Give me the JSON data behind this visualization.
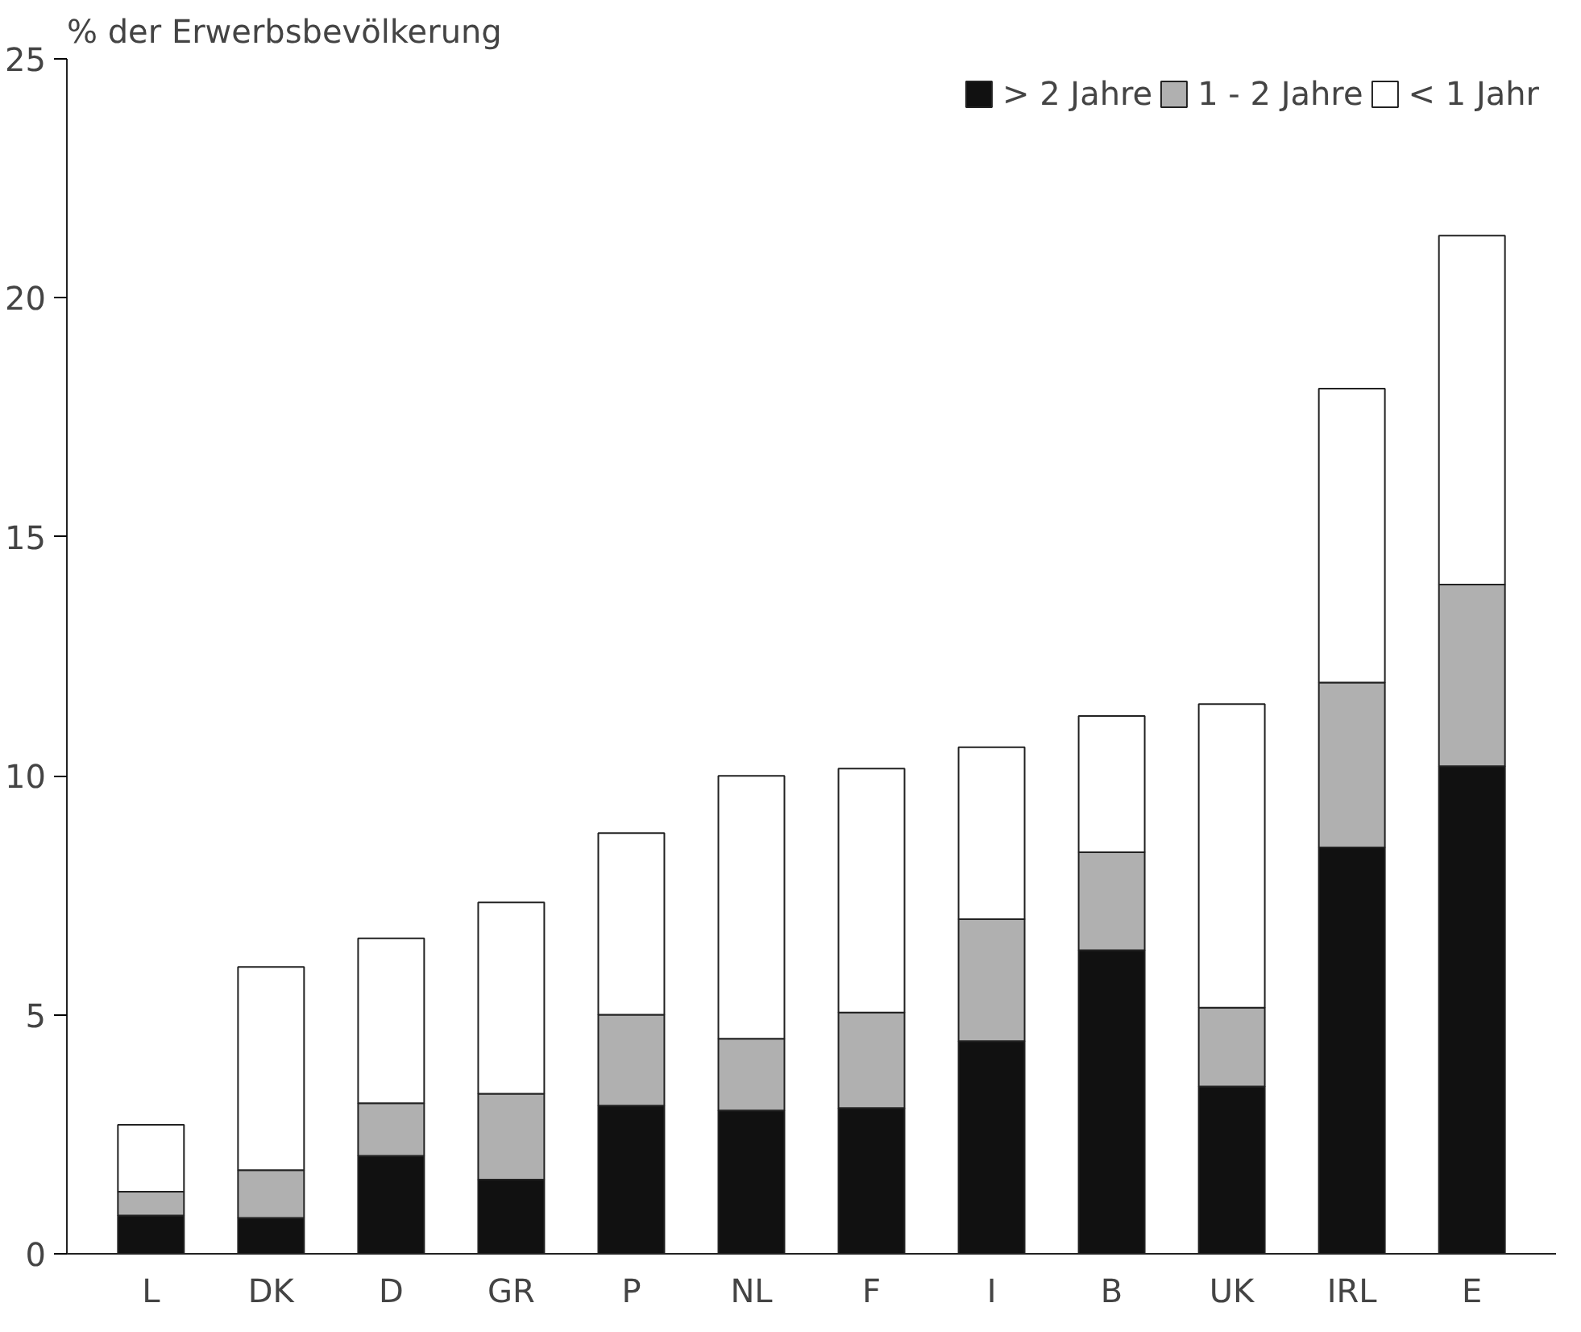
{
  "chart_data": {
    "type": "bar",
    "stacked": true,
    "ylabel": "% der Erwerbsbevölkerung",
    "categories": [
      "L",
      "DK",
      "D",
      "GR",
      "P",
      "NL",
      "F",
      "I",
      "B",
      "UK",
      "IRL",
      "E"
    ],
    "series": [
      {
        "name": "> 2 Jahre",
        "color": "#111111",
        "values": [
          0.8,
          0.75,
          2.05,
          1.55,
          3.1,
          3.0,
          3.05,
          4.45,
          6.35,
          3.5,
          8.5,
          10.2
        ]
      },
      {
        "name": "1 - 2 Jahre",
        "color": "#b0b0b0",
        "values": [
          0.5,
          1.0,
          1.1,
          1.8,
          1.9,
          1.5,
          2.0,
          2.55,
          2.05,
          1.65,
          3.45,
          3.8
        ]
      },
      {
        "name": "< 1 Jahr",
        "color": "#ffffff",
        "values": [
          1.4,
          4.25,
          3.45,
          4.0,
          3.8,
          5.5,
          5.1,
          3.6,
          2.85,
          6.35,
          6.15,
          7.3
        ]
      }
    ],
    "ylim": [
      0,
      25
    ],
    "yticks": [
      0,
      5,
      10,
      15,
      20,
      25
    ],
    "grid": false,
    "legend": "top right"
  }
}
